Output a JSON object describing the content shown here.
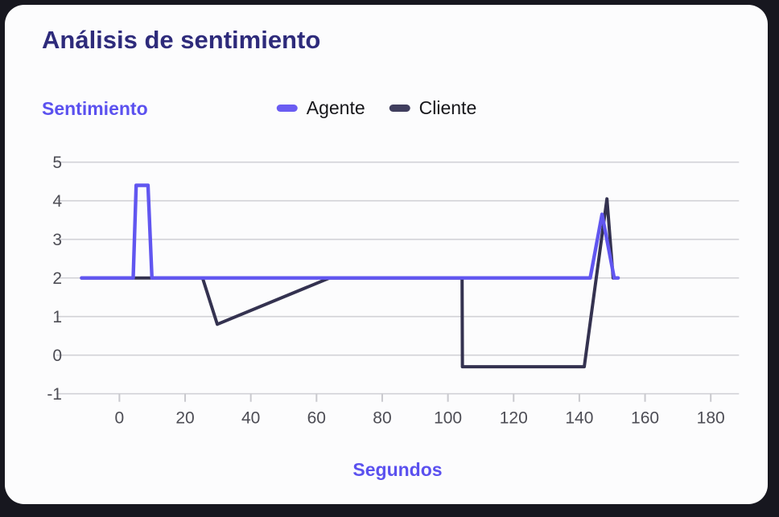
{
  "colors": {
    "background": "#17171F",
    "card": "#FCFCFD",
    "title": "#2E2B7B",
    "accent": "#5B51EF",
    "legend_text": "#17171B",
    "grid": "#D2D2D7",
    "tick": "#C9C9CE",
    "tick_label": "#4D4D55"
  },
  "chart_data": {
    "type": "line",
    "title": "Análisis de sentimiento",
    "y_axis_title": "Sentimiento",
    "x_axis_title": "Segundos",
    "x_ticks": [
      0,
      20,
      40,
      60,
      80,
      100,
      120,
      140,
      160,
      180
    ],
    "y_ticks": [
      5,
      4,
      3,
      2,
      1,
      0,
      -1
    ],
    "xlim": [
      -19.2,
      188.6
    ],
    "ylim": [
      -1,
      5
    ],
    "grid": "horizontal-light",
    "legend_position": "top-center",
    "legend": [
      {
        "label": "Agente",
        "color": "#6A5CF2"
      },
      {
        "label": "Cliente",
        "color": "#403E5E"
      }
    ],
    "series": [
      {
        "name": "Cliente",
        "color": "#343250",
        "stroke_width": 4,
        "points": [
          [
            -11.5,
            2
          ],
          [
            25.3,
            2
          ],
          [
            29.8,
            0.8
          ],
          [
            64,
            2
          ],
          [
            104.3,
            2
          ],
          [
            104.4,
            -0.3
          ],
          [
            141.5,
            -0.3
          ],
          [
            148.4,
            4.05
          ],
          [
            150.3,
            2
          ]
        ]
      },
      {
        "name": "Agente",
        "color": "#6156F0",
        "stroke_width": 4.4,
        "points": [
          [
            -11.5,
            2
          ],
          [
            4.2,
            2
          ],
          [
            5.1,
            4.4
          ],
          [
            8.7,
            4.4
          ],
          [
            9.9,
            2
          ],
          [
            143.3,
            2
          ],
          [
            146.9,
            3.65
          ],
          [
            150.6,
            2
          ],
          [
            151.8,
            2
          ]
        ]
      }
    ]
  }
}
